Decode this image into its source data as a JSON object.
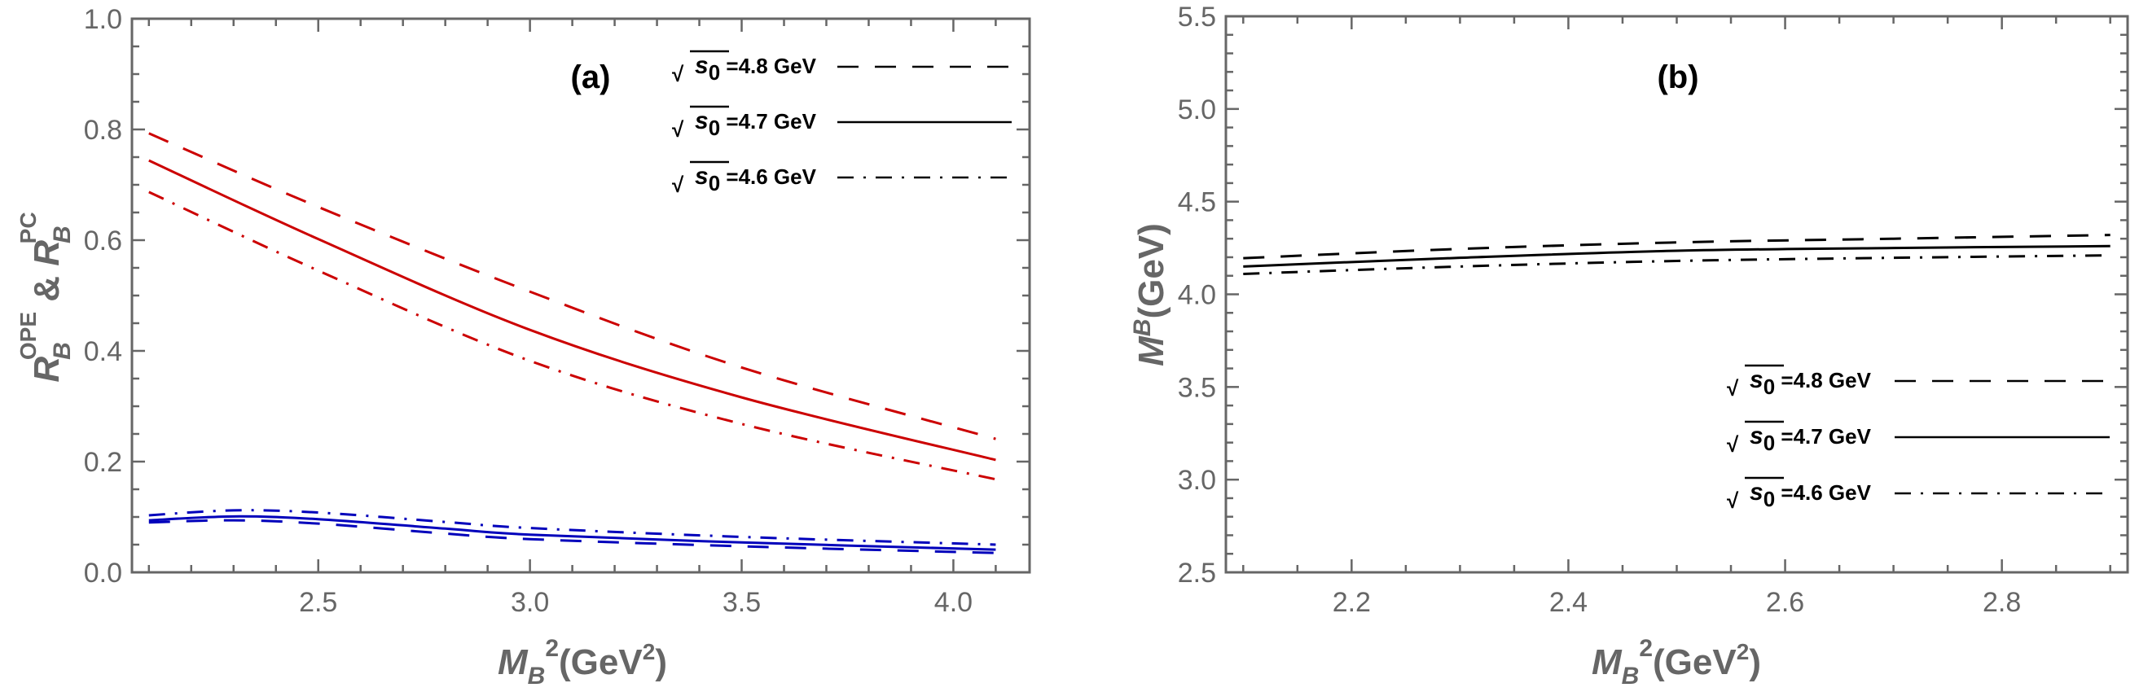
{
  "chart_data": [
    {
      "type": "line",
      "panel_label": "(a)",
      "xlabel": {
        "main": "M",
        "sub": "B",
        "sup": "2",
        "unit": "(GeV",
        "unit_sup": "2",
        "unit_close": ")"
      },
      "ylabel": {
        "r1": "R",
        "r1_sub": "B",
        "r1_sup": "OPE",
        "amp": " & ",
        "r2": "R",
        "r2_sub": "B",
        "r2_sup": "PC"
      },
      "xlim": [
        2.06,
        4.18
      ],
      "ylim": [
        0.0,
        1.0
      ],
      "xticks": [
        2.5,
        3.0,
        3.5,
        4.0
      ],
      "xtick_labels": [
        "2.5",
        "3.0",
        "3.5",
        "4.0"
      ],
      "xminor_step": 0.1,
      "yticks": [
        0.0,
        0.2,
        0.4,
        0.6,
        0.8,
        1.0
      ],
      "ytick_labels": [
        "0.0",
        "0.2",
        "0.4",
        "0.6",
        "0.8",
        "1.0"
      ],
      "yminor_step": 0.05,
      "legend": {
        "position": "top-right",
        "entries": [
          {
            "sqrt": "√",
            "s": "s",
            "s_sub": "0",
            "text": " =4.8 GeV",
            "style": "dashed"
          },
          {
            "sqrt": "√",
            "s": "s",
            "s_sub": "0",
            "text": " =4.7 GeV",
            "style": "solid"
          },
          {
            "sqrt": "√",
            "s": "s",
            "s_sub": "0",
            "text": " =4.6 GeV",
            "style": "dashdot"
          }
        ]
      },
      "series": [
        {
          "name": "R_B^OPE, √s0=4.8 GeV",
          "group": "OPE",
          "color": "#cc0000",
          "style": "dashed",
          "x": [
            2.1,
            2.5,
            3.0,
            3.5,
            4.1
          ],
          "y": [
            0.793,
            0.66,
            0.507,
            0.37,
            0.241
          ]
        },
        {
          "name": "R_B^OPE, √s0=4.7 GeV",
          "group": "OPE",
          "color": "#cc0000",
          "style": "solid",
          "x": [
            2.1,
            2.5,
            3.0,
            3.5,
            4.1
          ],
          "y": [
            0.744,
            0.602,
            0.438,
            0.316,
            0.203
          ]
        },
        {
          "name": "R_B^OPE, √s0=4.6 GeV",
          "group": "OPE",
          "color": "#cc0000",
          "style": "dashdot",
          "x": [
            2.1,
            2.5,
            3.0,
            3.5,
            4.1
          ],
          "y": [
            0.687,
            0.545,
            0.382,
            0.268,
            0.168
          ]
        },
        {
          "name": "R_B^PC, √s0=4.8 GeV",
          "group": "PC",
          "color": "#0000bb",
          "style": "dashed",
          "x": [
            2.1,
            2.3,
            2.5,
            2.8,
            3.0,
            3.5,
            4.1
          ],
          "y": [
            0.09,
            0.094,
            0.088,
            0.07,
            0.06,
            0.047,
            0.035
          ]
        },
        {
          "name": "R_B^PC, √s0=4.7 GeV",
          "group": "PC",
          "color": "#0000bb",
          "style": "solid",
          "x": [
            2.1,
            2.3,
            2.5,
            2.8,
            3.0,
            3.5,
            4.1
          ],
          "y": [
            0.094,
            0.101,
            0.096,
            0.079,
            0.068,
            0.054,
            0.041
          ]
        },
        {
          "name": "R_B^PC, √s0=4.6 GeV",
          "group": "PC",
          "color": "#0000bb",
          "style": "dashdot",
          "x": [
            2.1,
            2.3,
            2.5,
            2.8,
            3.0,
            3.5,
            4.1
          ],
          "y": [
            0.103,
            0.112,
            0.108,
            0.091,
            0.08,
            0.064,
            0.05
          ]
        }
      ]
    },
    {
      "type": "line",
      "panel_label": "(b)",
      "xlabel": {
        "main": "M",
        "sub": "B",
        "sup": "2",
        "unit": "(GeV",
        "unit_sup": "2",
        "unit_close": ")"
      },
      "ylabel": {
        "main": "M",
        "sup": "B",
        "unit": "(GeV)"
      },
      "xlim": [
        2.084,
        2.916
      ],
      "ylim": [
        2.5,
        5.5
      ],
      "xticks": [
        2.2,
        2.4,
        2.6,
        2.8
      ],
      "xtick_labels": [
        "2.2",
        "2.4",
        "2.6",
        "2.8"
      ],
      "xminor_step": 0.05,
      "yticks": [
        2.5,
        3.0,
        3.5,
        4.0,
        4.5,
        5.0,
        5.5
      ],
      "ytick_labels": [
        "2.5",
        "3.0",
        "3.5",
        "4.0",
        "4.5",
        "5.0",
        "5.5"
      ],
      "yminor_step": 0.1,
      "legend": {
        "position": "bottom-right",
        "entries": [
          {
            "sqrt": "√",
            "s": "s",
            "s_sub": "0",
            "text": " =4.8 GeV",
            "style": "dashed"
          },
          {
            "sqrt": "√",
            "s": "s",
            "s_sub": "0",
            "text": " =4.7 GeV",
            "style": "solid"
          },
          {
            "sqrt": "√",
            "s": "s",
            "s_sub": "0",
            "text": " =4.6 GeV",
            "style": "dashdot"
          }
        ]
      },
      "series": [
        {
          "name": "√s0=4.8 GeV",
          "color": "#000000",
          "style": "dashed",
          "x": [
            2.1,
            2.3,
            2.5,
            2.7,
            2.9
          ],
          "y": [
            4.195,
            4.245,
            4.28,
            4.3,
            4.32
          ]
        },
        {
          "name": "√s0=4.7 GeV",
          "color": "#000000",
          "style": "solid",
          "x": [
            2.1,
            2.3,
            2.5,
            2.7,
            2.9
          ],
          "y": [
            4.15,
            4.197,
            4.235,
            4.25,
            4.26
          ]
        },
        {
          "name": "√s0=4.6 GeV",
          "color": "#000000",
          "style": "dashdot",
          "x": [
            2.1,
            2.3,
            2.5,
            2.7,
            2.9
          ],
          "y": [
            4.11,
            4.15,
            4.18,
            4.197,
            4.21
          ]
        }
      ]
    }
  ]
}
